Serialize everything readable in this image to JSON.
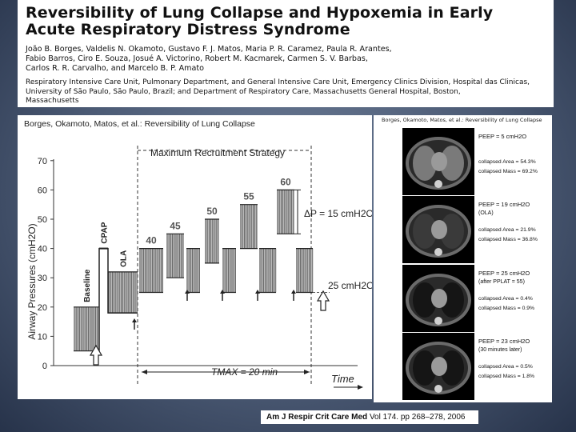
{
  "paper": {
    "title_line1": "Reversibility of Lung Collapse and Hypoxemia in Early",
    "title_line2": "Acute Respiratory Distress Syndrome",
    "authors_line1": "João B. Borges, Valdelis N. Okamoto, Gustavo F. J. Matos, Maria P. R. Caramez, Paula R. Arantes,",
    "authors_line2": "Fabio Barros, Ciro E. Souza, Josué A. Victorino, Robert M. Kacmarek, Carmen S. V. Barbas,",
    "authors_line3": "Carlos R. R. Carvalho, and Marcelo B. P. Amato",
    "affil_line1": "Respiratory Intensive Care Unit, Pulmonary Department, and General Intensive Care Unit, Emergency Clinics Division, Hospital das Clinicas,",
    "affil_line2": "University of São Paulo, São Paulo, Brazil; and Department of Respiratory Care, Massachusetts General Hospital, Boston,",
    "affil_line3": "Massachusetts"
  },
  "citation": {
    "journal": "Am J Respir Crit Care Med",
    "volume": "Vol 174. pp 268–278, 2006"
  },
  "chart_data": {
    "type": "bar",
    "caption": "Borges, Okamoto, Matos, et al.: Reversibility of Lung Collapse",
    "title": "Maximum Recruitment Strategy",
    "ylabel": "Airway Pressures (cmH2O)",
    "xlabel": "Time",
    "ylim": [
      0,
      70
    ],
    "yticks": [
      "0",
      "10",
      "20",
      "30",
      "40",
      "50",
      "60",
      "70"
    ],
    "phases": [
      {
        "label": "Baseline",
        "peak": 20,
        "peep": 5
      },
      {
        "label": "CPAP",
        "peak": 40,
        "peep": 40
      },
      {
        "label": "OLA",
        "peak": 32,
        "peep": 18
      },
      {
        "label": "40",
        "peak": 40,
        "peep": 25
      },
      {
        "label": "45",
        "peak": 45,
        "peep": 30
      },
      {
        "label": "",
        "peak": 40,
        "peep": 25
      },
      {
        "label": "50",
        "peak": 50,
        "peep": 35
      },
      {
        "label": "",
        "peak": 40,
        "peep": 25
      },
      {
        "label": "55",
        "peak": 55,
        "peep": 40
      },
      {
        "label": "",
        "peak": 40,
        "peep": 25
      },
      {
        "label": "60",
        "peak": 60,
        "peep": 45
      },
      {
        "label": "",
        "peak": 40,
        "peep": 25
      }
    ],
    "annotations": {
      "delta_p": "ΔP = 15 cmH2O",
      "plateau": "25 cmH2O",
      "tmax": "TMAX = 20 min"
    }
  },
  "ct_panel": {
    "caption": "Borges, Okamoto, Matos, et al.: Reversibility of Lung Collapse",
    "scans": [
      {
        "peep": "PEEP = 5 cmH2O",
        "sub": "",
        "area": "collapsed Area = 54.3%",
        "mass": "collapsed Mass = 69.2%"
      },
      {
        "peep": "PEEP = 19 cmH2O",
        "sub": "(OLA)",
        "area": "collapsed Area = 21.9%",
        "mass": "collapsed Mass = 36.8%"
      },
      {
        "peep": "PEEP = 25 cmH2O",
        "sub": "(after PPLAT = 55)",
        "area": "collapsed Area = 0.4%",
        "mass": "collapsed Mass = 0.9%"
      },
      {
        "peep": "PEEP = 23 cmH2O",
        "sub": "(30 minutes later)",
        "area": "collapsed Area = 0.5%",
        "mass": "collapsed Mass = 1.8%"
      }
    ]
  }
}
